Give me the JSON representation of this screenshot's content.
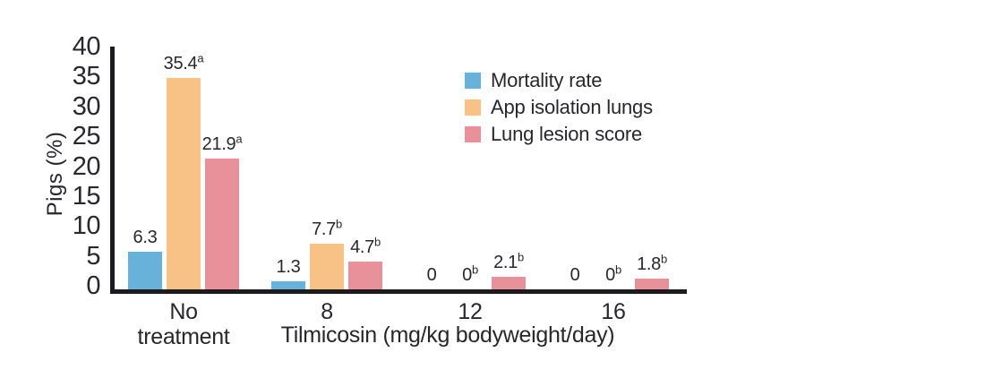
{
  "chart_data": {
    "type": "bar",
    "title": "",
    "ylabel": "Pigs (%)",
    "xlabel": "Tilmicosin (mg/kg bodyweight/day)",
    "ylim": [
      0,
      40
    ],
    "yticks": [
      0,
      5,
      10,
      15,
      20,
      25,
      30,
      35,
      40
    ],
    "grid": false,
    "legend_position": "upper-right-inside",
    "categories": [
      "No\ntreatment",
      "8",
      "12",
      "16"
    ],
    "series": [
      {
        "name": "Mortality rate",
        "color": "#68b1da",
        "values": [
          6.3,
          1.3,
          0,
          0
        ],
        "labels": [
          "6.3",
          "1.3",
          "0",
          "0"
        ],
        "superscripts": [
          "",
          "",
          "",
          ""
        ]
      },
      {
        "name": "App isolation lungs",
        "color": "#f8c185",
        "values": [
          35.4,
          7.7,
          0,
          0
        ],
        "labels": [
          "35.4",
          "7.7",
          "0",
          "0"
        ],
        "superscripts": [
          "a",
          "b",
          "b",
          "b"
        ]
      },
      {
        "name": "Lung lesion score",
        "color": "#e8919a",
        "values": [
          21.9,
          4.7,
          2.1,
          1.8
        ],
        "labels": [
          "21.9",
          "4.7",
          "2.1",
          "1.8"
        ],
        "superscripts": [
          "a",
          "b",
          "b",
          "b"
        ]
      }
    ]
  }
}
